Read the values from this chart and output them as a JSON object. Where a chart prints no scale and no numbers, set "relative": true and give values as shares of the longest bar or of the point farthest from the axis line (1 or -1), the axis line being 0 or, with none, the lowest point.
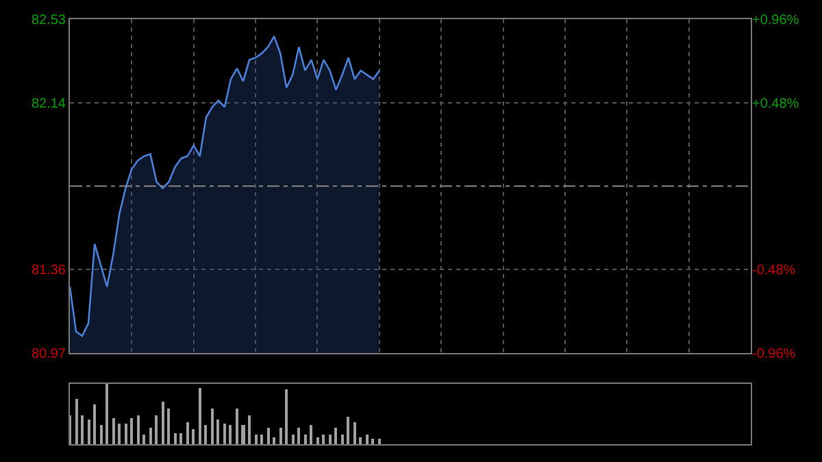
{
  "chart_data": [
    {
      "type": "area",
      "categories": [
        null,
        null,
        null,
        null,
        null,
        null,
        null,
        null,
        null,
        null,
        null,
        null,
        null,
        null,
        null,
        null,
        null,
        null,
        null,
        null,
        null,
        null,
        null,
        null,
        null,
        null,
        null,
        null,
        null,
        null,
        null,
        null,
        null,
        null,
        null,
        null,
        null,
        null,
        null,
        null,
        null,
        null,
        null,
        null,
        null,
        null,
        null,
        null,
        null,
        null,
        null,
        null,
        null,
        null,
        null,
        null,
        null,
        null,
        null,
        null,
        null,
        null,
        null,
        null,
        null,
        null,
        null,
        null,
        null,
        null,
        null,
        null,
        null,
        null,
        null,
        null,
        null,
        null,
        null,
        null,
        null,
        null,
        null,
        null,
        null,
        null,
        null,
        null,
        null,
        null,
        null,
        null,
        null,
        null,
        null,
        null,
        null,
        null,
        null,
        null,
        null,
        null,
        null,
        null,
        null,
        null,
        null,
        null,
        null,
        null,
        null
      ],
      "series": [
        {
          "color": "#4a7fd8",
          "values": [
            81.28,
            81.07,
            81.05,
            81.11,
            81.48,
            81.38,
            81.28,
            81.43,
            81.62,
            81.74,
            81.83,
            81.87,
            81.89,
            81.9,
            81.77,
            81.74,
            81.77,
            81.84,
            81.88,
            81.89,
            81.94,
            81.89,
            82.07,
            82.12,
            82.15,
            82.12,
            82.25,
            82.3,
            82.24,
            82.34,
            82.35,
            82.37,
            82.4,
            82.45,
            82.37,
            82.21,
            82.27,
            82.4,
            82.29,
            82.34,
            82.25,
            82.34,
            82.29,
            82.2,
            82.27,
            82.35,
            82.25,
            82.29,
            82.27,
            82.25,
            82.29,
            null,
            null,
            null,
            null,
            null,
            null,
            null,
            null,
            null,
            null,
            null,
            null,
            null,
            null,
            null,
            null,
            null,
            null,
            null,
            null,
            null,
            null,
            null,
            null,
            null,
            null,
            null,
            null,
            null,
            null,
            null,
            null,
            null,
            null,
            null,
            null,
            null,
            null,
            null,
            null,
            null,
            null,
            null,
            null,
            null,
            null,
            null,
            null,
            null,
            null,
            null,
            null,
            null,
            null,
            null,
            null,
            null,
            null,
            null,
            null
          ]
        }
      ],
      "ylim": [
        80.97,
        82.53
      ],
      "yticks": [
        80.97,
        81.36,
        82.14,
        82.53
      ],
      "y2lim": [
        -0.96,
        0.96
      ],
      "y2ticks": [
        {
          "value": -0.96,
          "label": "-0.96%"
        },
        {
          "value": -0.48,
          "label": "-0.48%"
        },
        {
          "value": 0.48,
          "label": "+0.48%"
        },
        {
          "value": 0.96,
          "label": "+0.96%"
        }
      ],
      "ref_lines": [
        {
          "axis": "y",
          "value": 81.75,
          "label": null,
          "line_style": "dashed"
        }
      ],
      "grid": true,
      "marker": "none",
      "line_style": "solid",
      "tick_labels": "y"
    },
    {
      "type": "bar",
      "relative": true,
      "color": "#a0a0a0",
      "categories": [
        null,
        null,
        null,
        null,
        null,
        null,
        null,
        null,
        null,
        null,
        null,
        null,
        null,
        null,
        null,
        null,
        null,
        null,
        null,
        null,
        null,
        null,
        null,
        null,
        null,
        null,
        null,
        null,
        null,
        null,
        null,
        null,
        null,
        null,
        null,
        null,
        null,
        null,
        null,
        null,
        null,
        null,
        null,
        null,
        null,
        null,
        null,
        null,
        null,
        null,
        null,
        null,
        null,
        null,
        null,
        null,
        null,
        null,
        null,
        null,
        null,
        null,
        null,
        null,
        null,
        null,
        null,
        null,
        null,
        null,
        null,
        null,
        null,
        null,
        null,
        null,
        null,
        null,
        null,
        null,
        null,
        null,
        null,
        null,
        null,
        null,
        null,
        null,
        null,
        null,
        null,
        null,
        null,
        null,
        null,
        null,
        null,
        null,
        null,
        null,
        null,
        null,
        null,
        null,
        null,
        null,
        null,
        null,
        null,
        null,
        null
      ],
      "values": [
        0.48,
        0.74,
        0.48,
        0.4,
        0.66,
        0.31,
        1.0,
        0.44,
        0.33,
        0.33,
        0.44,
        0.48,
        0.15,
        0.27,
        0.48,
        0.7,
        0.6,
        0.19,
        0.19,
        0.36,
        0.25,
        0.93,
        0.31,
        0.6,
        0.4,
        0.33,
        0.31,
        0.6,
        0.31,
        0.48,
        0.15,
        0.15,
        0.27,
        0.11,
        0.27,
        0.92,
        0.15,
        0.27,
        0.15,
        0.31,
        0.11,
        0.15,
        0.15,
        0.27,
        0.15,
        0.45,
        0.36,
        0.11,
        0.15,
        0.08,
        0.08,
        null,
        null,
        null,
        null,
        null,
        null,
        null,
        null,
        null,
        null,
        null,
        null,
        null,
        null,
        null,
        null,
        null,
        null,
        null,
        null,
        null,
        null,
        null,
        null,
        null,
        null,
        null,
        null,
        null,
        null,
        null,
        null,
        null,
        null,
        null,
        null,
        null,
        null,
        null,
        null,
        null,
        null,
        null,
        null,
        null,
        null,
        null,
        null,
        null,
        null,
        null,
        null,
        null,
        null,
        null,
        null,
        null,
        null,
        null,
        null
      ],
      "grid": false,
      "tick_labels": false
    }
  ]
}
